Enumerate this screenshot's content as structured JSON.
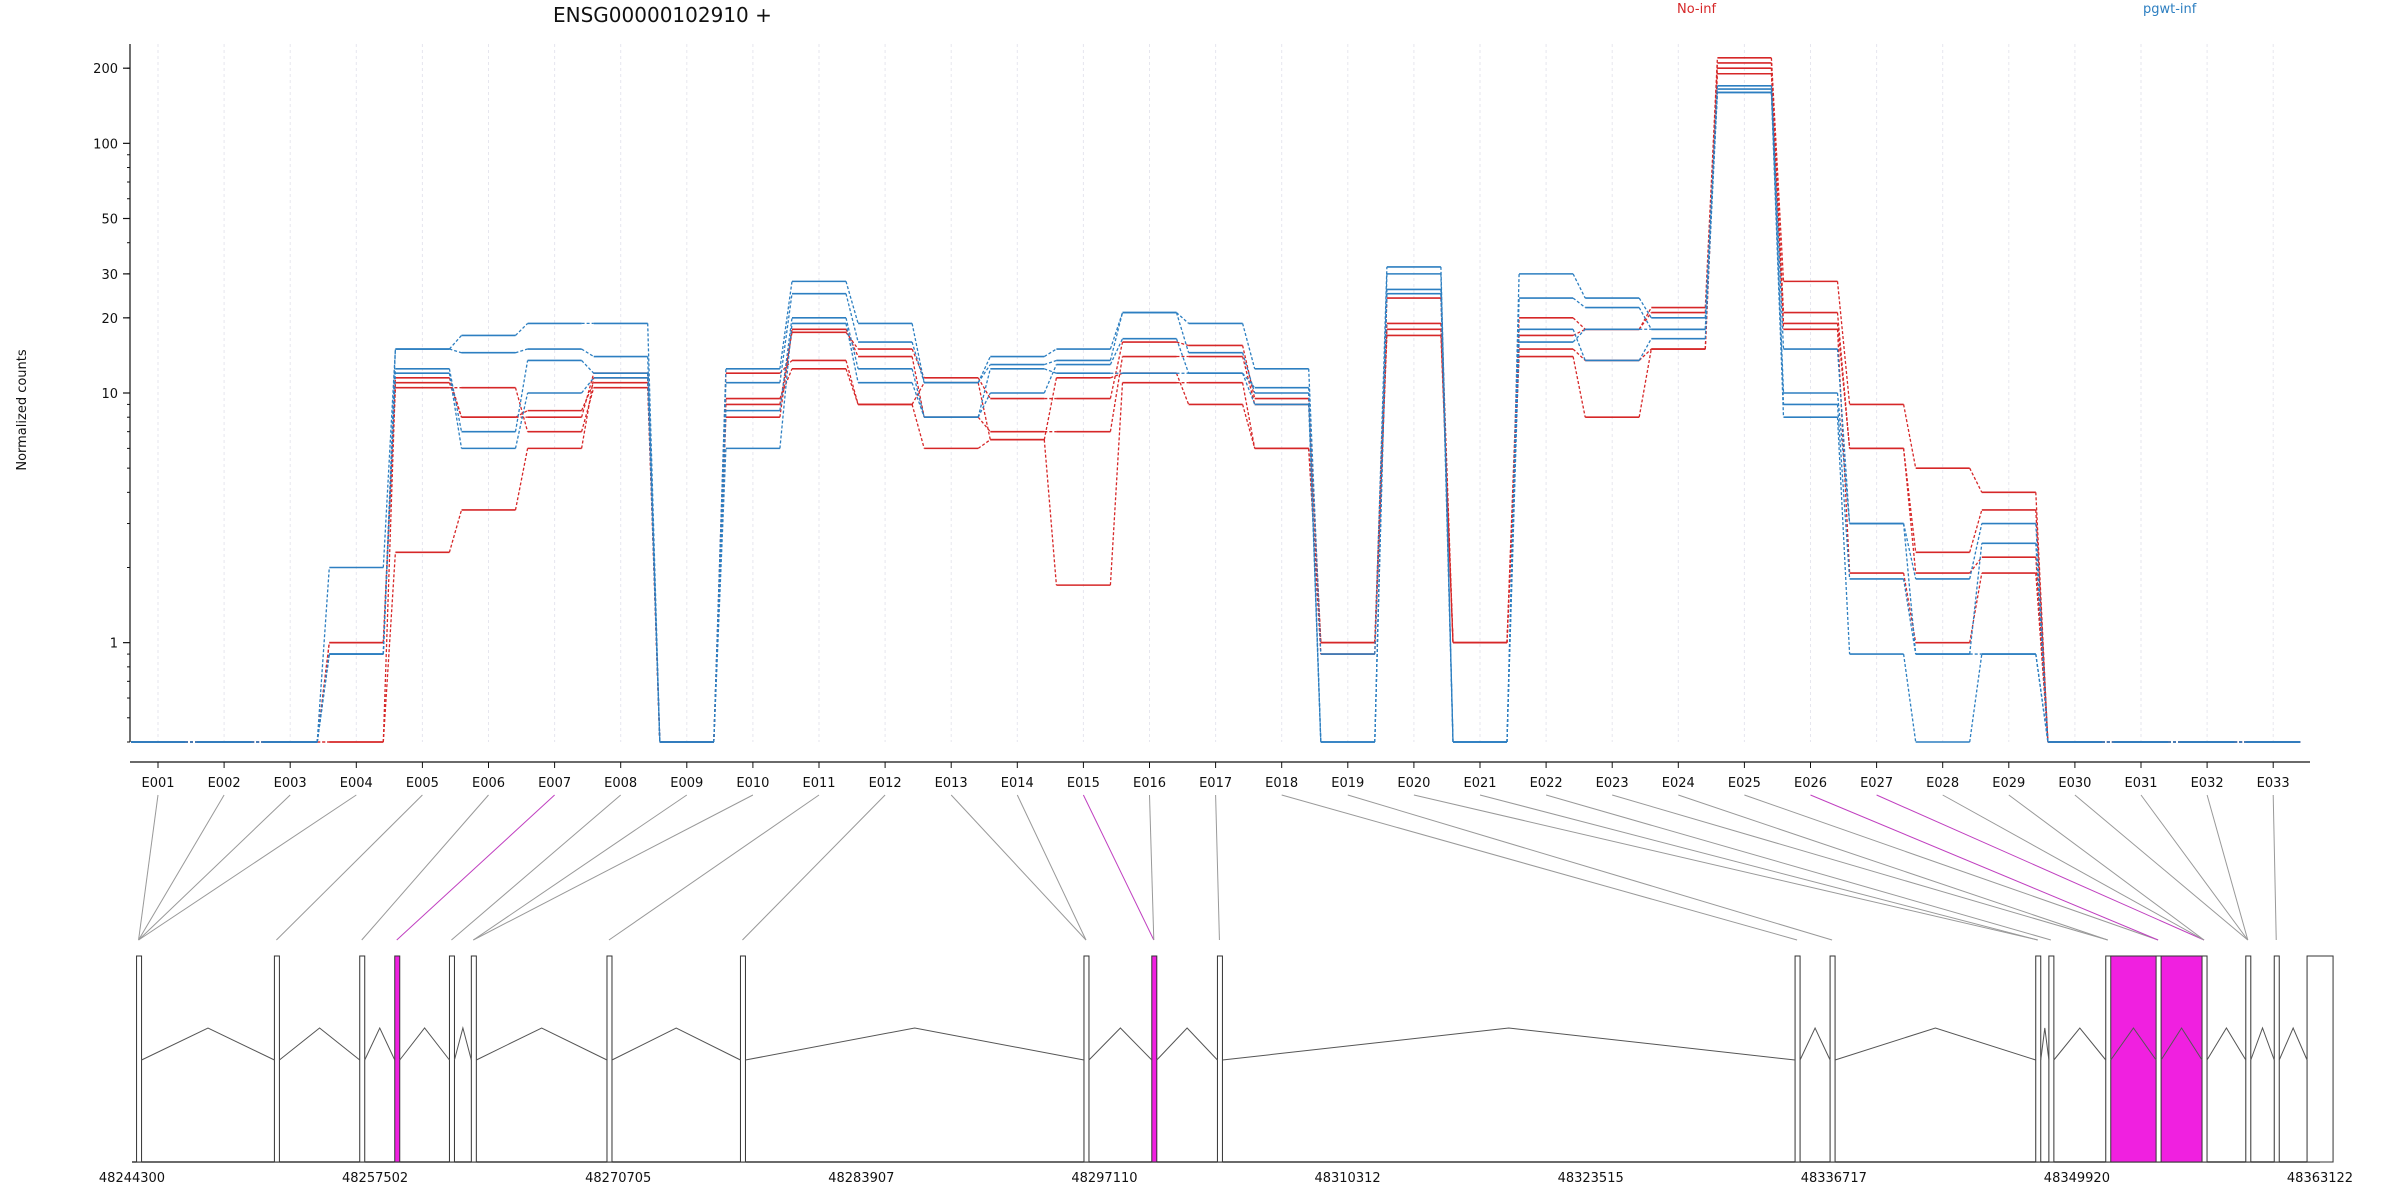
{
  "chart_data": {
    "type": "line",
    "title": "ENSG00000102910 +",
    "ylabel": "Normalized counts",
    "xlabel": "",
    "yscale": "log",
    "ylim": [
      0.4,
      250
    ],
    "yticks": [
      "200",
      "100",
      "50",
      "30",
      "20",
      "10",
      "1"
    ],
    "legend": [
      {
        "name": "No-inf",
        "color": "#d62728"
      },
      {
        "name": "pgwt-inf",
        "color": "#2d7fc1"
      }
    ],
    "categories": [
      "E001",
      "E002",
      "E003",
      "E004",
      "E005",
      "E006",
      "E007",
      "E008",
      "E009",
      "E010",
      "E011",
      "E012",
      "E013",
      "E014",
      "E015",
      "E016",
      "E017",
      "E018",
      "E019",
      "E020",
      "E021",
      "E022",
      "E023",
      "E024",
      "E025",
      "E026",
      "E027",
      "E028",
      "E029",
      "E030",
      "E031",
      "E032",
      "E033"
    ],
    "series": [
      {
        "group": "No-inf",
        "values": [
          0.4,
          0.4,
          0.4,
          1.0,
          11.5,
          8.0,
          8.0,
          12.0,
          0.4,
          9.0,
          17.5,
          15.0,
          11.5,
          9.5,
          9.5,
          16.0,
          15.5,
          9.5,
          1.0,
          24.0,
          1.0,
          20.0,
          18.0,
          22.0,
          220,
          28.0,
          9.0,
          5.0,
          4.0,
          0.4,
          0.4,
          0.4,
          0.4
        ]
      },
      {
        "group": "No-inf",
        "values": [
          0.4,
          0.4,
          0.4,
          1.0,
          10.5,
          10.5,
          7.0,
          10.5,
          0.4,
          8.0,
          18.0,
          14.0,
          8.0,
          7.0,
          7.0,
          14.0,
          14.0,
          9.0,
          1.0,
          19.0,
          1.0,
          17.0,
          18.0,
          21.0,
          210,
          21.0,
          6.0,
          2.3,
          3.4,
          0.4,
          0.4,
          0.4,
          0.4
        ]
      },
      {
        "group": "No-inf",
        "values": [
          0.4,
          0.4,
          0.4,
          0.4,
          2.3,
          3.4,
          6.0,
          11.5,
          0.4,
          12.0,
          13.5,
          9.0,
          6.0,
          6.5,
          1.7,
          11.0,
          11.0,
          6.0,
          0.9,
          18.0,
          1.0,
          14.0,
          8.0,
          15.0,
          200,
          19.0,
          6.0,
          1.9,
          2.2,
          0.4,
          0.4,
          0.4,
          0.4
        ]
      },
      {
        "group": "No-inf",
        "values": [
          0.4,
          0.4,
          0.4,
          0.4,
          11.0,
          8.0,
          8.5,
          11.0,
          0.4,
          9.5,
          12.5,
          9.0,
          11.0,
          6.5,
          11.5,
          12.0,
          9.0,
          6.0,
          1.0,
          17.0,
          1.0,
          15.0,
          13.5,
          15.0,
          190,
          18.0,
          1.9,
          1.0,
          1.9,
          0.4,
          0.4,
          0.4,
          0.4
        ]
      },
      {
        "group": "pgwt-inf",
        "values": [
          0.4,
          0.4,
          0.4,
          2.0,
          15.0,
          17.0,
          19.0,
          19.0,
          0.4,
          12.5,
          28.0,
          19.0,
          11.0,
          14.0,
          15.0,
          21.0,
          19.0,
          12.5,
          0.9,
          32.0,
          0.4,
          30.0,
          24.0,
          20.0,
          170,
          15.0,
          3.0,
          1.8,
          3.0,
          0.4,
          0.4,
          0.4,
          0.4
        ]
      },
      {
        "group": "pgwt-inf",
        "values": [
          0.4,
          0.4,
          0.4,
          0.9,
          15.0,
          14.5,
          15.0,
          14.0,
          0.4,
          11.0,
          25.0,
          16.0,
          11.0,
          13.0,
          13.5,
          21.0,
          14.5,
          10.0,
          0.4,
          30.0,
          0.4,
          24.0,
          22.0,
          18.0,
          165,
          10.0,
          3.0,
          0.9,
          2.5,
          0.4,
          0.4,
          0.4,
          0.4
        ]
      },
      {
        "group": "pgwt-inf",
        "values": [
          0.4,
          0.4,
          0.4,
          0.9,
          12.5,
          7.0,
          13.5,
          12.0,
          0.4,
          8.5,
          20.0,
          12.5,
          8.0,
          10.0,
          13.0,
          16.5,
          12.0,
          9.0,
          0.4,
          26.0,
          0.4,
          18.0,
          13.5,
          16.5,
          160,
          9.0,
          1.8,
          0.9,
          0.9,
          0.4,
          0.4,
          0.4,
          0.4
        ]
      },
      {
        "group": "pgwt-inf",
        "values": [
          0.4,
          0.4,
          0.4,
          0.9,
          12.0,
          6.0,
          10.0,
          11.5,
          0.4,
          6.0,
          19.0,
          11.0,
          8.0,
          12.5,
          12.0,
          12.0,
          12.0,
          10.5,
          0.4,
          25.0,
          0.4,
          16.0,
          18.0,
          18.0,
          160,
          8.0,
          0.9,
          0.4,
          0.9,
          0.4,
          0.4,
          0.4,
          0.4
        ]
      }
    ],
    "genomic_axis": {
      "ticks": [
        "48244300",
        "48257502",
        "48270705",
        "48283907",
        "48297110",
        "48310312",
        "48323515",
        "48336717",
        "48349920",
        "48363122"
      ],
      "exon_positions": [
        0.003,
        0.066,
        0.105,
        0.121,
        0.146,
        0.156,
        0.218,
        0.279,
        0.436,
        0.467,
        0.497,
        0.761,
        0.777,
        0.871,
        0.877,
        0.903,
        0.926,
        0.947,
        0.967,
        0.98,
        0.995
      ],
      "highlight_color": "#f020e0"
    }
  }
}
